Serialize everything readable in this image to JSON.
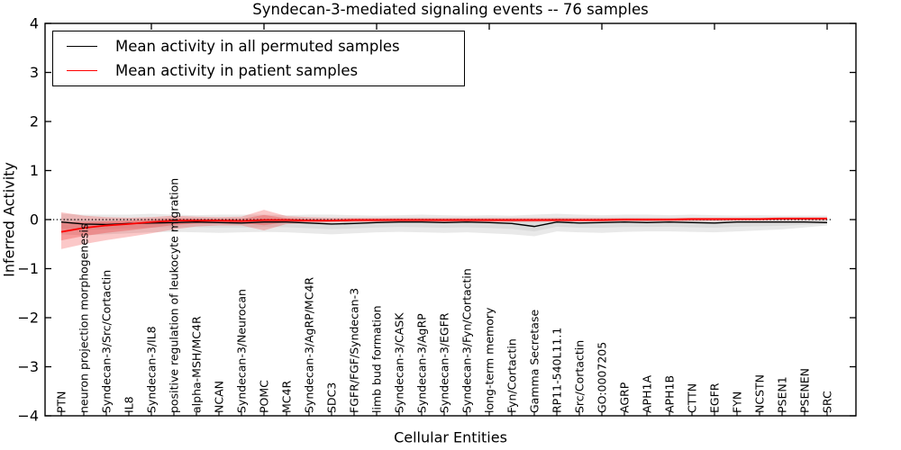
{
  "title": "Syndecan-3-mediated signaling events -- 76 samples",
  "axes": {
    "ylabel": "Inferred Activity",
    "xlabel": "Cellular Entities",
    "yticks": [
      "4",
      "3",
      "2",
      "1",
      "0",
      "−1",
      "−2",
      "−3",
      "−4"
    ],
    "ytick_values": [
      4,
      3,
      2,
      1,
      0,
      -1,
      -2,
      -3,
      -4
    ],
    "ylim": [
      -4,
      4
    ]
  },
  "legend": {
    "items": [
      {
        "label": "Mean activity in all permuted samples",
        "color": "#000000"
      },
      {
        "label": "Mean activity in patient samples",
        "color": "#ff0000"
      }
    ]
  },
  "colors": {
    "permuted_line": "#000000",
    "patient_line": "#ff0000",
    "permuted_band": "#999999",
    "patient_band": "#ee2222",
    "reference_line": "#000000",
    "axis": "#000000"
  },
  "chart_data": {
    "type": "line",
    "title": "Syndecan-3-mediated signaling events -- 76 samples",
    "xlabel": "Cellular Entities",
    "ylabel": "Inferred Activity",
    "ylim": [
      -4,
      4
    ],
    "legend_position": "upper left",
    "grid": false,
    "reference_line": {
      "y": 0,
      "style": "dotted",
      "color": "#000000"
    },
    "categories": [
      "PTN",
      "neuron projection morphogenesis",
      "Syndecan-3/Src/Cortactin",
      "IL8",
      "Syndecan-3/IL8",
      "positive regulation of leukocyte migration",
      "alpha-MSH/MC4R",
      "NCAN",
      "Syndecan-3/Neurocan",
      "POMC",
      "MC4R",
      "Syndecan-3/AgRP/MC4R",
      "SDC3",
      "FGFR/FGF/Syndecan-3",
      "limb bud formation",
      "Syndecan-3/CASK",
      "Syndecan-3/AgRP",
      "Syndecan-3/EGFR",
      "Syndecan-3/Fyn/Cortactin",
      "long-term memory",
      "Fyn/Cortactin",
      "Gamma Secretase",
      "RP11-540L11.1",
      "Src/Cortactin",
      "GO:0007205",
      "AGRP",
      "APH1A",
      "APH1B",
      "CTTN",
      "EGFR",
      "FYN",
      "NCSTN",
      "PSEN1",
      "PSENEN",
      "SRC"
    ],
    "series": [
      {
        "name": "Mean activity in all permuted samples",
        "color": "#000000",
        "values": [
          -0.05,
          -0.09,
          -0.1,
          -0.08,
          -0.07,
          -0.06,
          -0.05,
          -0.06,
          -0.07,
          -0.05,
          -0.05,
          -0.07,
          -0.09,
          -0.08,
          -0.06,
          -0.05,
          -0.05,
          -0.06,
          -0.05,
          -0.06,
          -0.08,
          -0.14,
          -0.05,
          -0.07,
          -0.06,
          -0.05,
          -0.06,
          -0.05,
          -0.06,
          -0.07,
          -0.05,
          -0.05,
          -0.05,
          -0.05,
          -0.06
        ],
        "band_upper": [
          0.12,
          0.1,
          0.1,
          0.1,
          0.12,
          0.1,
          0.09,
          0.1,
          0.1,
          0.1,
          0.09,
          0.1,
          0.1,
          0.09,
          0.08,
          0.09,
          0.1,
          0.09,
          0.08,
          0.09,
          0.08,
          0.1,
          0.12,
          0.1,
          0.09,
          0.1,
          0.1,
          0.09,
          0.1,
          0.09,
          0.08,
          0.09,
          0.08,
          0.08,
          0.08
        ],
        "band_lower": [
          -0.3,
          -0.32,
          -0.3,
          -0.28,
          -0.26,
          -0.25,
          -0.26,
          -0.27,
          -0.26,
          -0.25,
          -0.26,
          -0.28,
          -0.3,
          -0.28,
          -0.26,
          -0.25,
          -0.26,
          -0.27,
          -0.26,
          -0.28,
          -0.3,
          -0.34,
          -0.24,
          -0.26,
          -0.27,
          -0.25,
          -0.24,
          -0.24,
          -0.25,
          -0.26,
          -0.24,
          -0.22,
          -0.2,
          -0.16,
          -0.12
        ]
      },
      {
        "name": "Mean activity in patient samples",
        "color": "#ff0000",
        "values": [
          -0.25,
          -0.17,
          -0.12,
          -0.09,
          -0.05,
          -0.02,
          -0.02,
          -0.02,
          -0.03,
          -0.01,
          -0.01,
          -0.02,
          -0.02,
          -0.01,
          -0.01,
          -0.01,
          -0.01,
          -0.01,
          -0.01,
          -0.01,
          -0.01,
          -0.01,
          -0.01,
          -0.01,
          -0.01,
          0.0,
          0.0,
          0.0,
          0.01,
          0.01,
          0.01,
          0.01,
          0.02,
          0.02,
          0.02
        ],
        "band_upper": [
          0.15,
          0.08,
          0.05,
          0.04,
          0.05,
          0.08,
          0.06,
          0.05,
          0.06,
          0.2,
          0.07,
          0.05,
          0.04,
          0.04,
          0.04,
          0.04,
          0.04,
          0.04,
          0.04,
          0.04,
          0.04,
          0.04,
          0.04,
          0.04,
          0.04,
          0.04,
          0.04,
          0.04,
          0.04,
          0.04,
          0.04,
          0.04,
          0.05,
          0.05,
          0.05
        ],
        "band_lower": [
          -0.6,
          -0.5,
          -0.42,
          -0.35,
          -0.28,
          -0.2,
          -0.14,
          -0.12,
          -0.12,
          -0.22,
          -0.09,
          -0.07,
          -0.06,
          -0.05,
          -0.05,
          -0.05,
          -0.05,
          -0.05,
          -0.05,
          -0.05,
          -0.05,
          -0.05,
          -0.04,
          -0.04,
          -0.04,
          -0.04,
          -0.04,
          -0.04,
          -0.03,
          -0.03,
          -0.02,
          -0.02,
          -0.02,
          -0.02,
          -0.02
        ]
      }
    ]
  }
}
